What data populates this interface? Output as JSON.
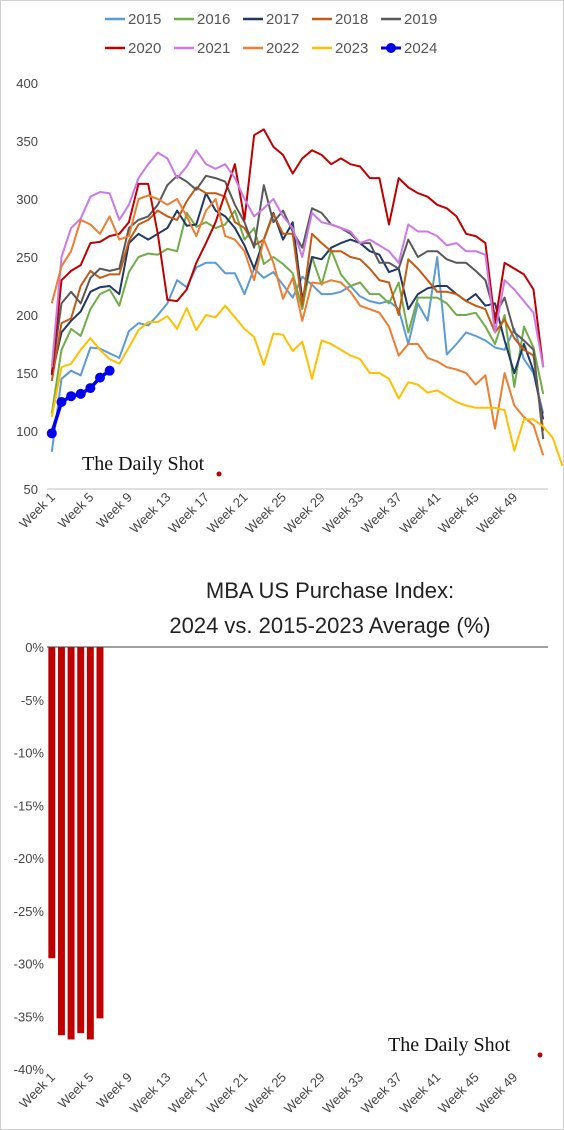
{
  "watermark": "The Daily Shot",
  "chart_data": [
    {
      "type": "line",
      "title": "",
      "ylim": [
        50,
        400
      ],
      "y_ticks": [
        "50",
        "100",
        "150",
        "200",
        "250",
        "300",
        "350",
        "400"
      ],
      "x_ticks": [
        "Week 1",
        "Week 5",
        "Week 9",
        "Week 13",
        "Week 17",
        "Week 21",
        "Week 25",
        "Week 29",
        "Week 33",
        "Week 37",
        "Week 41",
        "Week 45",
        "Week 49"
      ],
      "legend_position": "top",
      "grid": false,
      "series": [
        {
          "name": "2015",
          "color": "#5b9bd5",
          "values": [
            82,
            145,
            152,
            148,
            172,
            171,
            167,
            163,
            186,
            193,
            191,
            200,
            210,
            230,
            224,
            241,
            245,
            245,
            236,
            236,
            218,
            240,
            232,
            237,
            226,
            215,
            233,
            226,
            218,
            218,
            220,
            225,
            216,
            212,
            210,
            212,
            205,
            175,
            210,
            195,
            250,
            166,
            175,
            185,
            182,
            178,
            172,
            170,
            188,
            162,
            150,
            115
          ]
        },
        {
          "name": "2016",
          "color": "#70ad47",
          "values": [
            115,
            170,
            188,
            182,
            205,
            218,
            222,
            208,
            237,
            250,
            253,
            252,
            257,
            255,
            288,
            276,
            280,
            275,
            278,
            290,
            265,
            275,
            244,
            250,
            244,
            236,
            205,
            250,
            226,
            256,
            235,
            225,
            228,
            218,
            218,
            210,
            228,
            185,
            215,
            215,
            215,
            210,
            200,
            200,
            202,
            190,
            175,
            200,
            138,
            190,
            172,
            132
          ]
        },
        {
          "name": "2017",
          "color": "#1f3864",
          "values": [
            148,
            185,
            195,
            203,
            220,
            224,
            225,
            218,
            262,
            270,
            265,
            270,
            275,
            290,
            277,
            278,
            305,
            290,
            285,
            275,
            260,
            240,
            265,
            288,
            265,
            280,
            213,
            250,
            248,
            258,
            262,
            265,
            262,
            255,
            252,
            237,
            240,
            205,
            218,
            223,
            225,
            225,
            218,
            212,
            218,
            208,
            210,
            178,
            150,
            175,
            152,
            110
          ]
        },
        {
          "name": "2018",
          "color": "#c55a11",
          "values": [
            143,
            193,
            197,
            225,
            238,
            232,
            235,
            235,
            264,
            278,
            282,
            290,
            285,
            282,
            298,
            310,
            305,
            305,
            302,
            280,
            275,
            260,
            265,
            287,
            270,
            270,
            208,
            270,
            262,
            255,
            255,
            250,
            248,
            240,
            230,
            228,
            200,
            248,
            240,
            230,
            220,
            220,
            218,
            212,
            208,
            205,
            185,
            196,
            180,
            170,
            165,
            100
          ]
        },
        {
          "name": "2019",
          "color": "#595959",
          "values": [
            150,
            210,
            220,
            210,
            232,
            240,
            238,
            240,
            275,
            282,
            285,
            295,
            312,
            320,
            315,
            308,
            320,
            318,
            315,
            295,
            280,
            258,
            312,
            280,
            290,
            272,
            258,
            292,
            288,
            278,
            275,
            270,
            262,
            262,
            245,
            245,
            240,
            265,
            250,
            255,
            255,
            248,
            245,
            245,
            238,
            230,
            200,
            215,
            185,
            178,
            170,
            93
          ]
        },
        {
          "name": "2020",
          "color": "#c00000",
          "values": [
            149,
            230,
            238,
            243,
            262,
            263,
            268,
            270,
            280,
            313,
            313,
            270,
            213,
            212,
            222,
            245,
            262,
            280,
            305,
            330,
            282,
            355,
            360,
            345,
            338,
            322,
            335,
            342,
            338,
            330,
            335,
            330,
            328,
            318,
            318,
            278,
            318,
            310,
            305,
            302,
            295,
            292,
            285,
            270,
            268,
            262,
            193,
            245,
            240,
            235,
            222,
            155
          ]
        },
        {
          "name": "2021",
          "color": "#cc79e8",
          "values": [
            155,
            250,
            275,
            283,
            302,
            306,
            305,
            282,
            295,
            318,
            330,
            340,
            335,
            318,
            328,
            342,
            330,
            326,
            330,
            318,
            300,
            285,
            292,
            300,
            285,
            275,
            250,
            288,
            280,
            278,
            275,
            272,
            262,
            265,
            260,
            255,
            245,
            278,
            272,
            272,
            268,
            260,
            262,
            255,
            255,
            252,
            185,
            230,
            222,
            212,
            202,
            155
          ]
        },
        {
          "name": "2022",
          "color": "#ed7d31",
          "values": [
            210,
            242,
            255,
            282,
            278,
            270,
            285,
            265,
            268,
            300,
            303,
            300,
            295,
            300,
            285,
            268,
            290,
            300,
            268,
            265,
            255,
            230,
            265,
            245,
            214,
            232,
            195,
            228,
            227,
            230,
            228,
            220,
            208,
            205,
            202,
            190,
            165,
            175,
            175,
            163,
            160,
            155,
            153,
            150,
            140,
            148,
            102,
            150,
            122,
            112,
            105,
            79
          ]
        },
        {
          "name": "2023",
          "color": "#ffc000",
          "values": [
            112,
            155,
            158,
            170,
            180,
            170,
            162,
            158,
            172,
            187,
            194,
            194,
            199,
            188,
            206,
            187,
            200,
            198,
            208,
            198,
            188,
            181,
            157,
            184,
            183,
            169,
            177,
            145,
            178,
            175,
            170,
            165,
            162,
            150,
            150,
            145,
            128,
            142,
            140,
            133,
            135,
            130,
            125,
            122,
            120,
            120,
            120,
            118,
            83,
            110,
            110,
            104,
            94,
            70
          ]
        },
        {
          "name": "2024",
          "color": "#0000ee",
          "markers": true,
          "values": [
            98,
            125,
            130,
            132,
            137,
            146,
            152
          ]
        }
      ]
    },
    {
      "type": "bar",
      "title": "MBA US Purchase Index:",
      "subtitle": "2024 vs. 2015-2023 Average (%)",
      "ylim": [
        -40,
        0
      ],
      "y_ticks": [
        "0%",
        "-5%",
        "-10%",
        "-15%",
        "-20%",
        "-25%",
        "-30%",
        "-35%",
        "-40%"
      ],
      "x_ticks": [
        "Week 1",
        "Week 5",
        "Week 9",
        "Week 13",
        "Week 17",
        "Week 21",
        "Week 25",
        "Week 29",
        "Week 33",
        "Week 37",
        "Week 41",
        "Week 45",
        "Week 49"
      ],
      "bar_color": "#c00000",
      "values": [
        -29.5,
        -36.8,
        -37.2,
        -36.6,
        -37.2,
        -35.2
      ]
    }
  ]
}
